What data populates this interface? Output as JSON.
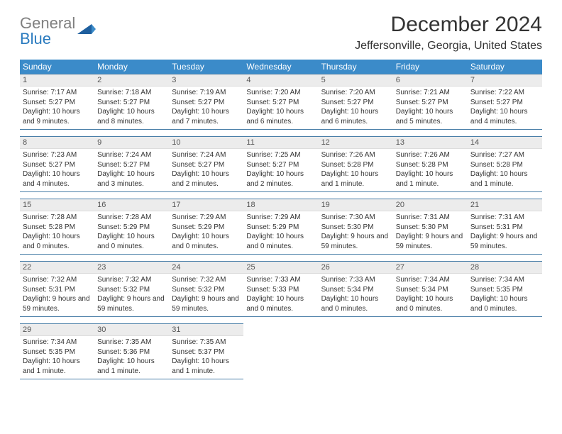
{
  "brand": {
    "word1": "General",
    "word2": "Blue"
  },
  "title": "December 2024",
  "location": "Jeffersonville, Georgia, United States",
  "colors": {
    "header_bg": "#3b8bc9",
    "header_text": "#ffffff",
    "daynum_bg": "#ececec",
    "rule": "#4a7fa8",
    "logo_gray": "#808080",
    "logo_blue": "#2b7bbf"
  },
  "days_of_week": [
    "Sunday",
    "Monday",
    "Tuesday",
    "Wednesday",
    "Thursday",
    "Friday",
    "Saturday"
  ],
  "weeks": [
    [
      {
        "n": "1",
        "sr": "7:17 AM",
        "ss": "5:27 PM",
        "dl": "10 hours and 9 minutes."
      },
      {
        "n": "2",
        "sr": "7:18 AM",
        "ss": "5:27 PM",
        "dl": "10 hours and 8 minutes."
      },
      {
        "n": "3",
        "sr": "7:19 AM",
        "ss": "5:27 PM",
        "dl": "10 hours and 7 minutes."
      },
      {
        "n": "4",
        "sr": "7:20 AM",
        "ss": "5:27 PM",
        "dl": "10 hours and 6 minutes."
      },
      {
        "n": "5",
        "sr": "7:20 AM",
        "ss": "5:27 PM",
        "dl": "10 hours and 6 minutes."
      },
      {
        "n": "6",
        "sr": "7:21 AM",
        "ss": "5:27 PM",
        "dl": "10 hours and 5 minutes."
      },
      {
        "n": "7",
        "sr": "7:22 AM",
        "ss": "5:27 PM",
        "dl": "10 hours and 4 minutes."
      }
    ],
    [
      {
        "n": "8",
        "sr": "7:23 AM",
        "ss": "5:27 PM",
        "dl": "10 hours and 4 minutes."
      },
      {
        "n": "9",
        "sr": "7:24 AM",
        "ss": "5:27 PM",
        "dl": "10 hours and 3 minutes."
      },
      {
        "n": "10",
        "sr": "7:24 AM",
        "ss": "5:27 PM",
        "dl": "10 hours and 2 minutes."
      },
      {
        "n": "11",
        "sr": "7:25 AM",
        "ss": "5:27 PM",
        "dl": "10 hours and 2 minutes."
      },
      {
        "n": "12",
        "sr": "7:26 AM",
        "ss": "5:28 PM",
        "dl": "10 hours and 1 minute."
      },
      {
        "n": "13",
        "sr": "7:26 AM",
        "ss": "5:28 PM",
        "dl": "10 hours and 1 minute."
      },
      {
        "n": "14",
        "sr": "7:27 AM",
        "ss": "5:28 PM",
        "dl": "10 hours and 1 minute."
      }
    ],
    [
      {
        "n": "15",
        "sr": "7:28 AM",
        "ss": "5:28 PM",
        "dl": "10 hours and 0 minutes."
      },
      {
        "n": "16",
        "sr": "7:28 AM",
        "ss": "5:29 PM",
        "dl": "10 hours and 0 minutes."
      },
      {
        "n": "17",
        "sr": "7:29 AM",
        "ss": "5:29 PM",
        "dl": "10 hours and 0 minutes."
      },
      {
        "n": "18",
        "sr": "7:29 AM",
        "ss": "5:29 PM",
        "dl": "10 hours and 0 minutes."
      },
      {
        "n": "19",
        "sr": "7:30 AM",
        "ss": "5:30 PM",
        "dl": "9 hours and 59 minutes."
      },
      {
        "n": "20",
        "sr": "7:31 AM",
        "ss": "5:30 PM",
        "dl": "9 hours and 59 minutes."
      },
      {
        "n": "21",
        "sr": "7:31 AM",
        "ss": "5:31 PM",
        "dl": "9 hours and 59 minutes."
      }
    ],
    [
      {
        "n": "22",
        "sr": "7:32 AM",
        "ss": "5:31 PM",
        "dl": "9 hours and 59 minutes."
      },
      {
        "n": "23",
        "sr": "7:32 AM",
        "ss": "5:32 PM",
        "dl": "9 hours and 59 minutes."
      },
      {
        "n": "24",
        "sr": "7:32 AM",
        "ss": "5:32 PM",
        "dl": "9 hours and 59 minutes."
      },
      {
        "n": "25",
        "sr": "7:33 AM",
        "ss": "5:33 PM",
        "dl": "10 hours and 0 minutes."
      },
      {
        "n": "26",
        "sr": "7:33 AM",
        "ss": "5:34 PM",
        "dl": "10 hours and 0 minutes."
      },
      {
        "n": "27",
        "sr": "7:34 AM",
        "ss": "5:34 PM",
        "dl": "10 hours and 0 minutes."
      },
      {
        "n": "28",
        "sr": "7:34 AM",
        "ss": "5:35 PM",
        "dl": "10 hours and 0 minutes."
      }
    ],
    [
      {
        "n": "29",
        "sr": "7:34 AM",
        "ss": "5:35 PM",
        "dl": "10 hours and 1 minute."
      },
      {
        "n": "30",
        "sr": "7:35 AM",
        "ss": "5:36 PM",
        "dl": "10 hours and 1 minute."
      },
      {
        "n": "31",
        "sr": "7:35 AM",
        "ss": "5:37 PM",
        "dl": "10 hours and 1 minute."
      },
      null,
      null,
      null,
      null
    ]
  ],
  "labels": {
    "sunrise": "Sunrise:",
    "sunset": "Sunset:",
    "daylight": "Daylight:"
  }
}
